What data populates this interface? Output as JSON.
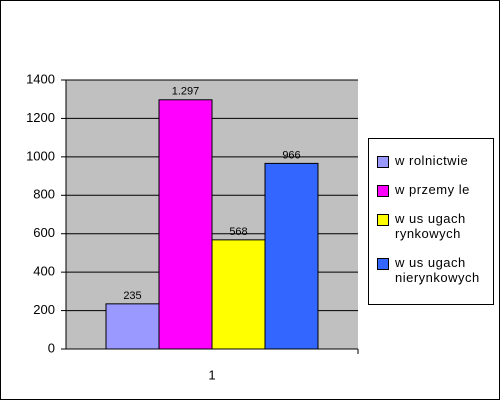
{
  "chart_data": {
    "type": "bar",
    "categories": [
      "1"
    ],
    "series": [
      {
        "name": "w rolnictwie",
        "color": "#9999ff",
        "values": [
          235
        ],
        "value_labels": [
          "235"
        ]
      },
      {
        "name": "w przemy le",
        "color": "#ff00ff",
        "values": [
          1297
        ],
        "value_labels": [
          "1.297"
        ]
      },
      {
        "name": "w us ugach rynkowych",
        "color": "#ffff00",
        "values": [
          568
        ],
        "value_labels": [
          "568"
        ]
      },
      {
        "name": "w us ugach nierynkowych",
        "color": "#3366ff",
        "values": [
          966
        ],
        "value_labels": [
          "966"
        ]
      }
    ],
    "ylim": [
      0,
      1400
    ],
    "yticks": [
      0,
      200,
      400,
      600,
      800,
      1000,
      1200,
      1400
    ],
    "grid": true,
    "legend": "right"
  }
}
